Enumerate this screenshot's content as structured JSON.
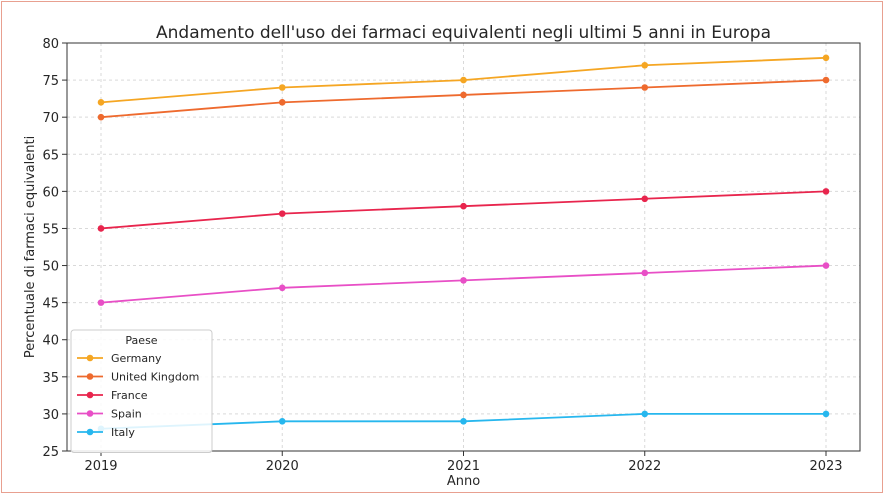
{
  "chart_data": {
    "type": "line",
    "title": "Andamento dell'uso dei farmaci equivalenti negli ultimi 5 anni in Europa",
    "xlabel": "Anno",
    "ylabel": "Percentuale di farmaci equivalenti",
    "x": [
      2019,
      2020,
      2021,
      2022,
      2023
    ],
    "ylim": [
      25,
      80
    ],
    "yticks": [
      25,
      30,
      35,
      40,
      45,
      50,
      55,
      60,
      65,
      70,
      75,
      80
    ],
    "grid": true,
    "legend": {
      "title": "Paese",
      "placement": "lower-left"
    },
    "series": [
      {
        "name": "Germany",
        "color": "#f5a623",
        "values": [
          72,
          74,
          75,
          77,
          78
        ]
      },
      {
        "name": "United Kingdom",
        "color": "#ee6a2e",
        "values": [
          70,
          72,
          73,
          74,
          75
        ]
      },
      {
        "name": "France",
        "color": "#e8254d",
        "values": [
          55,
          57,
          58,
          59,
          60
        ]
      },
      {
        "name": "Spain",
        "color": "#e84fc6",
        "values": [
          45,
          47,
          48,
          49,
          50
        ]
      },
      {
        "name": "Italy",
        "color": "#27b7ee",
        "values": [
          28,
          29,
          29,
          30,
          30
        ]
      }
    ]
  }
}
